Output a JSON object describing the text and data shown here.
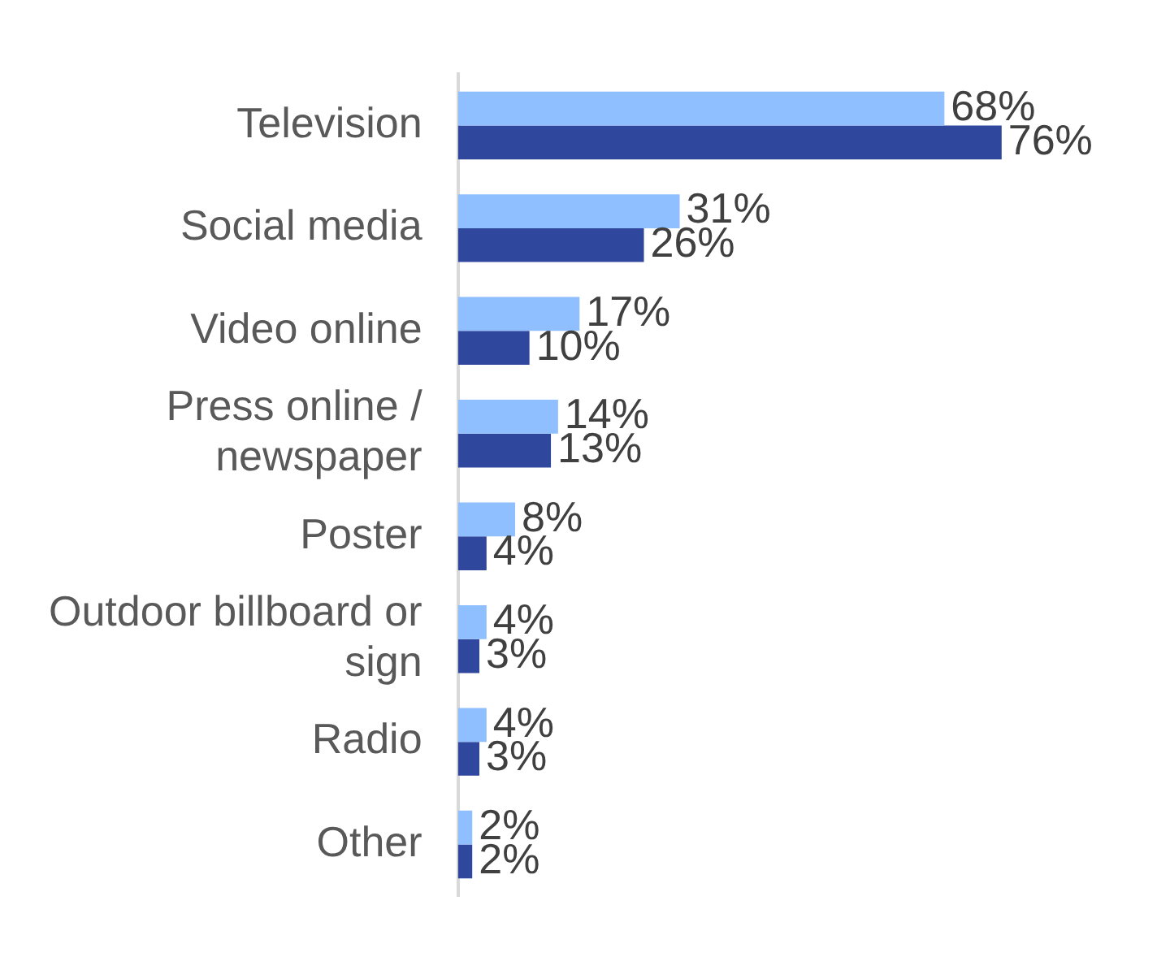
{
  "chart_data": {
    "type": "bar",
    "orientation": "horizontal",
    "categories": [
      "Television",
      "Social media",
      "Video online",
      "Press online / newspaper",
      "Poster",
      "Outdoor billboard or sign",
      "Radio",
      "Other"
    ],
    "series": [
      {
        "color": "#8fbfff",
        "values": [
          68,
          31,
          17,
          14,
          8,
          4,
          4,
          2
        ],
        "value_labels": [
          "68%",
          "31%",
          "17%",
          "14%",
          "8%",
          "4%",
          "4%",
          "2%"
        ]
      },
      {
        "color": "#30479e",
        "values": [
          76,
          26,
          10,
          13,
          4,
          3,
          3,
          2
        ],
        "value_labels": [
          "76%",
          "26%",
          "10%",
          "13%",
          "4%",
          "3%",
          "3%",
          "2%"
        ]
      }
    ],
    "grid": false,
    "legend": false
  }
}
